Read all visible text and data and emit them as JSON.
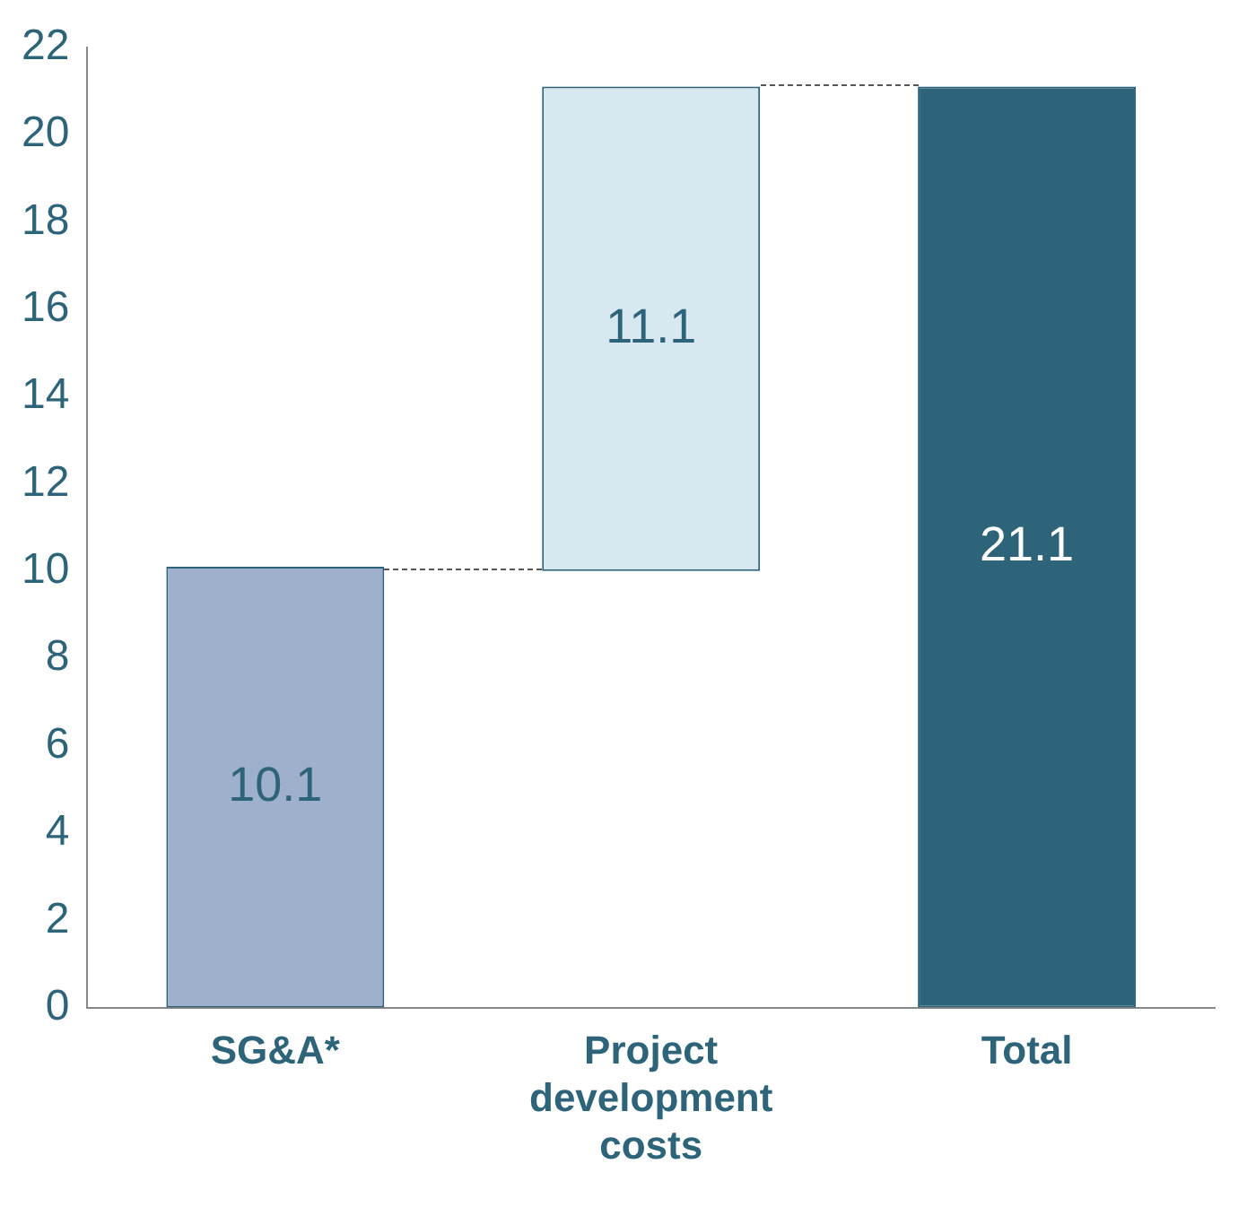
{
  "chart_data": {
    "type": "bar",
    "categories": [
      "SG&A*",
      "Project development costs",
      "Total"
    ],
    "values": [
      10.1,
      11.1,
      21.1
    ],
    "base": [
      0,
      10,
      0
    ],
    "colors": [
      "#9fb0cd",
      "#d8e8f0",
      "#2e6479"
    ],
    "ylim": [
      0,
      22
    ],
    "yticks": [
      0,
      2,
      4,
      6,
      8,
      10,
      12,
      14,
      16,
      18,
      20,
      22
    ],
    "data_labels": true,
    "grid": false,
    "legend": false
  }
}
